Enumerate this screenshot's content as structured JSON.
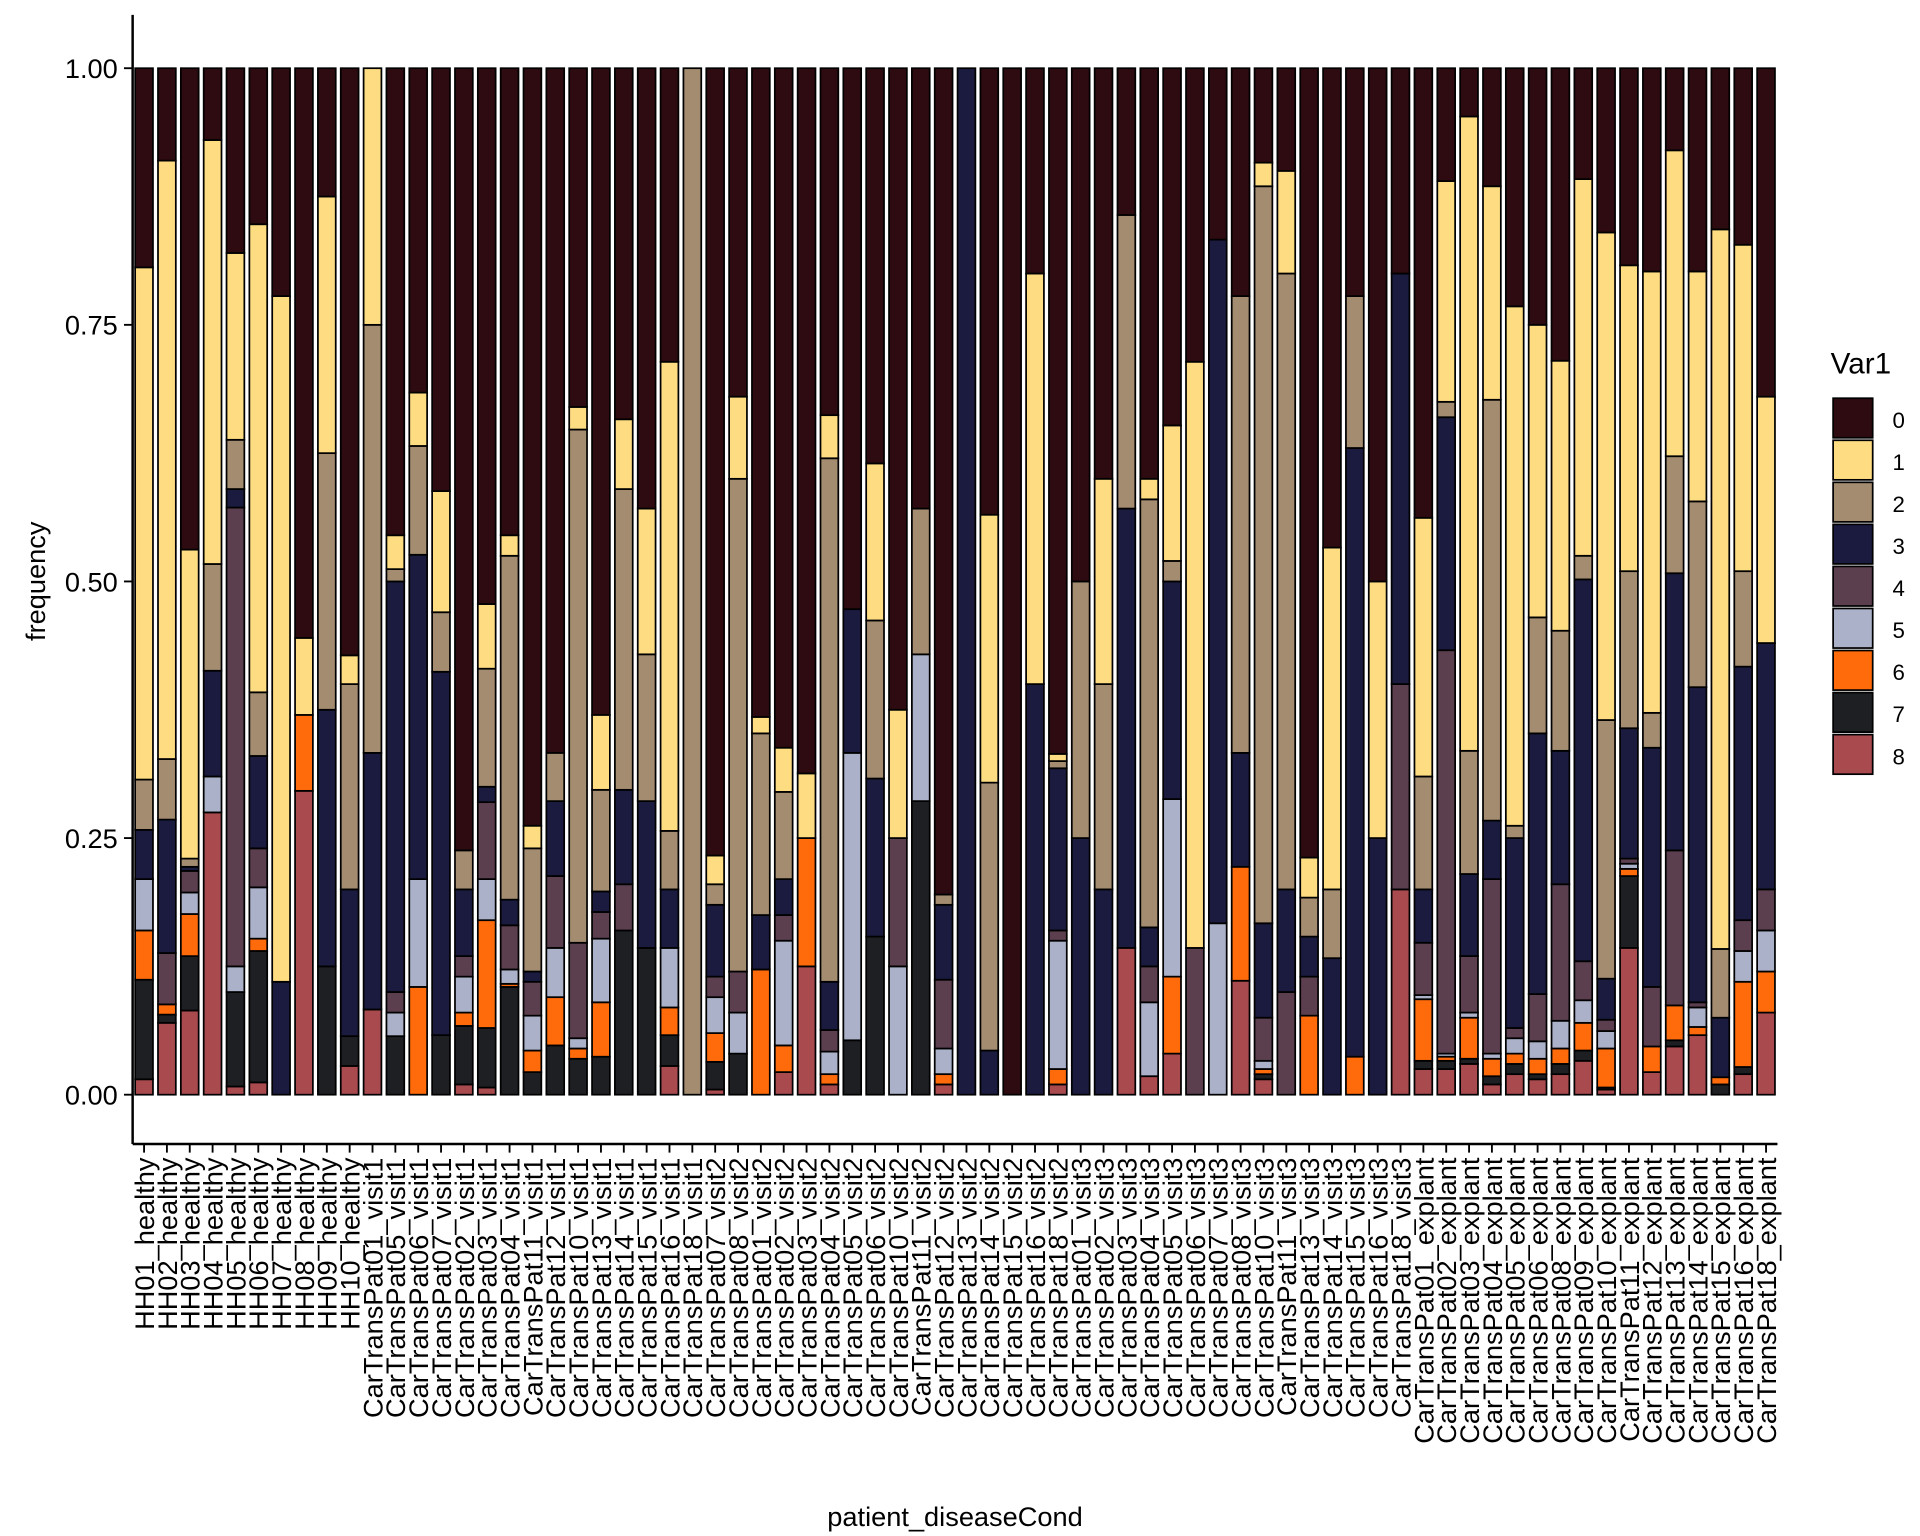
{
  "chart_data": {
    "type": "stacked_bar",
    "xlabel": "patient_diseaseCond",
    "ylabel": "frequency",
    "legend_title": "Var1",
    "legend_position": "right",
    "categories": [
      "HH01_healthy",
      "HH02_healthy",
      "HH03_healthy",
      "HH04_healthy",
      "HH05_healthy",
      "HH06_healthy",
      "HH07_healthy",
      "HH08_healthy",
      "HH09_healthy",
      "HH10_healthy",
      "CarTransPat01_visit1",
      "CarTransPat05_visit1",
      "CarTransPat06_visit1",
      "CarTransPat07_visit1",
      "CarTransPat02_visit1",
      "CarTransPat03_visit1",
      "CarTransPat04_visit1",
      "CarTransPat11_visit1",
      "CarTransPat12_visit1",
      "CarTransPat10_visit1",
      "CarTransPat13_visit1",
      "CarTransPat14_visit1",
      "CarTransPat15_visit1",
      "CarTransPat16_visit1",
      "CarTransPat18_visit1",
      "CarTransPat07_visit2",
      "CarTransPat08_visit2",
      "CarTransPat01_visit2",
      "CarTransPat02_visit2",
      "CarTransPat03_visit2",
      "CarTransPat04_visit2",
      "CarTransPat05_visit2",
      "CarTransPat06_visit2",
      "CarTransPat10_visit2",
      "CarTransPat11_visit2",
      "CarTransPat12_visit2",
      "CarTransPat13_visit2",
      "CarTransPat14_visit2",
      "CarTransPat15_visit2",
      "CarTransPat16_visit2",
      "CarTransPat18_visit2",
      "CarTransPat01_visit3",
      "CarTransPat02_visit3",
      "CarTransPat03_visit3",
      "CarTransPat04_visit3",
      "CarTransPat05_visit3",
      "CarTransPat06_visit3",
      "CarTransPat07_visit3",
      "CarTransPat08_visit3",
      "CarTransPat10_visit3",
      "CarTransPat11_visit3",
      "CarTransPat13_visit3",
      "CarTransPat14_visit3",
      "CarTransPat15_visit3",
      "CarTransPat16_visit3",
      "CarTransPat18_visit3",
      "CarTransPat01_explant",
      "CarTransPat02_explant",
      "CarTransPat03_explant",
      "CarTransPat04_explant",
      "CarTransPat05_explant",
      "CarTransPat06_explant",
      "CarTransPat08_explant",
      "CarTransPat09_explant",
      "CarTransPat10_explant",
      "CarTransPat11_explant",
      "CarTransPat12_explant",
      "CarTransPat13_explant",
      "CarTransPat14_explant",
      "CarTransPat15_explant",
      "CarTransPat16_explant",
      "CarTransPat18_explant"
    ],
    "series": [
      {
        "name": "0",
        "color": "#2e0b10",
        "values": [
          0.194,
          0.09,
          0.469,
          0.07,
          0.18,
          0.152,
          0.222,
          0.555,
          0.125,
          0.572,
          0,
          0.455,
          0.316,
          0.412,
          0.762,
          0.522,
          0.455,
          0.738,
          0.667,
          0.33,
          0.63,
          0.342,
          0.429,
          0.286,
          0,
          0.767,
          0.32,
          0.632,
          0.662,
          0.687,
          0.338,
          0.527,
          0.385,
          0.625,
          0.429,
          0.805,
          0,
          0.435,
          1,
          0.2,
          0.668,
          0.5,
          0.4,
          0.143,
          0.4,
          0.348,
          0.286,
          0.167,
          0.222,
          0.092,
          0.1,
          0.769,
          0.467,
          0.222,
          0.5,
          0.2,
          0.438,
          0.11,
          0.047,
          0.115,
          0.232,
          0.25,
          0.285,
          0.108,
          0.16,
          0.192,
          0.198,
          0.08,
          0.198,
          0.157,
          0.172,
          0.32
        ]
      },
      {
        "name": "1",
        "color": "#fddc82",
        "values": [
          0.499,
          0.583,
          0.301,
          0.413,
          0.182,
          0.456,
          0.668,
          0.075,
          0.25,
          0.028,
          0.25,
          0.033,
          0.052,
          0.118,
          0,
          0.063,
          0.02,
          0.022,
          0,
          0.022,
          0.073,
          0.068,
          0.142,
          0.457,
          0,
          0.028,
          0.08,
          0.016,
          0.043,
          0.063,
          0.042,
          0,
          0.153,
          0.125,
          0,
          0,
          0,
          0.261,
          0,
          0.4,
          0.007,
          0,
          0.2,
          0,
          0.02,
          0.132,
          0.571,
          0,
          0,
          0.023,
          0.1,
          0.039,
          0.333,
          0,
          0.25,
          0,
          0.252,
          0.215,
          0.618,
          0.208,
          0.506,
          0.285,
          0.263,
          0.367,
          0.475,
          0.298,
          0.43,
          0.298,
          0.224,
          0.701,
          0.318,
          0.24
        ]
      },
      {
        "name": "2",
        "color": "#a48c70",
        "values": [
          0.049,
          0.059,
          0.008,
          0.104,
          0.048,
          0.062,
          0,
          0,
          0.25,
          0.2,
          0.417,
          0.012,
          0.106,
          0.058,
          0.038,
          0.115,
          0.335,
          0.12,
          0.047,
          0.5,
          0.099,
          0.293,
          0.143,
          0.057,
          1,
          0.02,
          0.48,
          0.177,
          0.085,
          0,
          0.51,
          0,
          0.154,
          0,
          0.142,
          0.01,
          0,
          0.261,
          0,
          0,
          0.007,
          0.25,
          0.2,
          0.286,
          0.417,
          0.02,
          0,
          0,
          0.445,
          0.718,
          0.6,
          0.038,
          0.067,
          0.148,
          0,
          0,
          0.11,
          0.015,
          0.12,
          0.41,
          0.012,
          0.113,
          0.117,
          0.023,
          0.252,
          0.153,
          0.034,
          0.114,
          0.181,
          0.067,
          0.093,
          0
        ]
      },
      {
        "name": "3",
        "color": "#1a1b3f",
        "values": [
          0.048,
          0.13,
          0.004,
          0.103,
          0.018,
          0.09,
          0.11,
          0,
          0.25,
          0.143,
          0.25,
          0.4,
          0.316,
          0.354,
          0.065,
          0.015,
          0.025,
          0.01,
          0.073,
          0,
          0.02,
          0.092,
          0.143,
          0.057,
          0,
          0.07,
          0,
          0.053,
          0.035,
          0,
          0.047,
          0.14,
          0.154,
          0,
          0,
          0.073,
          1,
          0.043,
          0,
          0.4,
          0.158,
          0.25,
          0.2,
          0.428,
          0.038,
          0.212,
          0,
          0.666,
          0.111,
          0.092,
          0.1,
          0.039,
          0.133,
          0.593,
          0.25,
          0.4,
          0.052,
          0.227,
          0.08,
          0.057,
          0.185,
          0.254,
          0.13,
          0.372,
          0.04,
          0.127,
          0.233,
          0.27,
          0.307,
          0.058,
          0.247,
          0.24
        ]
      },
      {
        "name": "4",
        "color": "#5b3f4f",
        "values": [
          0,
          0.05,
          0.021,
          0,
          0.447,
          0.038,
          0,
          0,
          0,
          0,
          0,
          0.02,
          0,
          0,
          0.02,
          0.075,
          0.043,
          0.033,
          0.07,
          0.093,
          0.026,
          0.045,
          0,
          0,
          0,
          0.02,
          0.04,
          0,
          0.025,
          0,
          0.021,
          0,
          0,
          0.125,
          0,
          0.067,
          0,
          0,
          0,
          0,
          0.01,
          0,
          0,
          0,
          0.035,
          0,
          0.143,
          0,
          0,
          0.042,
          0.1,
          0.038,
          0,
          0,
          0,
          0.2,
          0.051,
          0.393,
          0.055,
          0.17,
          0.01,
          0.046,
          0.133,
          0.038,
          0.011,
          0.005,
          0.058,
          0.151,
          0.005,
          0,
          0.03,
          0.04
        ]
      },
      {
        "name": "5",
        "color": "#aab1c8",
        "values": [
          0.05,
          0,
          0.021,
          0.035,
          0.025,
          0.05,
          0,
          0,
          0,
          0,
          0,
          0.023,
          0.105,
          0,
          0.035,
          0.04,
          0.014,
          0.034,
          0.048,
          0.01,
          0.062,
          0,
          0,
          0.058,
          0,
          0.035,
          0.04,
          0,
          0.102,
          0,
          0.022,
          0.28,
          0,
          0.125,
          0.143,
          0.025,
          0,
          0,
          0,
          0,
          0.125,
          0,
          0,
          0,
          0.072,
          0.173,
          0,
          0.167,
          0,
          0.008,
          0,
          0,
          0,
          0,
          0,
          0,
          0.004,
          0.003,
          0.005,
          0.005,
          0.015,
          0.017,
          0.027,
          0.022,
          0.017,
          0.005,
          0,
          0,
          0.019,
          0,
          0.03,
          0.04
        ]
      },
      {
        "name": "6",
        "color": "#ff6a0a",
        "values": [
          0.048,
          0.01,
          0.041,
          0,
          0,
          0.012,
          0,
          0.074,
          0,
          0,
          0,
          0,
          0.105,
          0,
          0.013,
          0.105,
          0.003,
          0.021,
          0.047,
          0.01,
          0.053,
          0,
          0,
          0.027,
          0,
          0.028,
          0,
          0.122,
          0.026,
          0.125,
          0.01,
          0,
          0,
          0,
          0,
          0.01,
          0,
          0,
          0,
          0,
          0.015,
          0,
          0,
          0,
          0,
          0.075,
          0,
          0,
          0.111,
          0.005,
          0,
          0.077,
          0,
          0.037,
          0,
          0,
          0.06,
          0.004,
          0.04,
          0.017,
          0.01,
          0.015,
          0.015,
          0.027,
          0.038,
          0.007,
          0.025,
          0.034,
          0.008,
          0.007,
          0.083,
          0.04
        ]
      },
      {
        "name": "7",
        "color": "#1e1f23",
        "values": [
          0.097,
          0.008,
          0.053,
          0,
          0.092,
          0.128,
          0,
          0,
          0.125,
          0.029,
          0,
          0.057,
          0,
          0.058,
          0.057,
          0.058,
          0.105,
          0.022,
          0.048,
          0.035,
          0.037,
          0.16,
          0.143,
          0.03,
          0,
          0.027,
          0.04,
          0,
          0,
          0,
          0,
          0.053,
          0.154,
          0,
          0.286,
          0,
          0,
          0,
          0,
          0,
          0,
          0,
          0,
          0,
          0,
          0,
          0,
          0,
          0,
          0.005,
          0,
          0,
          0,
          0,
          0,
          0,
          0.008,
          0.008,
          0.005,
          0.008,
          0.01,
          0.005,
          0.01,
          0.01,
          0.002,
          0.07,
          0,
          0.006,
          0,
          0.01,
          0.007,
          0
        ]
      },
      {
        "name": "8",
        "color": "#a94a4f",
        "values": [
          0.015,
          0.07,
          0.082,
          0.275,
          0.008,
          0.012,
          0,
          0.296,
          0,
          0.028,
          0.083,
          0,
          0,
          0,
          0.01,
          0.007,
          0,
          0,
          0,
          0,
          0,
          0,
          0,
          0.028,
          0,
          0.005,
          0,
          0,
          0.022,
          0.125,
          0.01,
          0,
          0,
          0,
          0,
          0.01,
          0,
          0,
          0,
          0,
          0.01,
          0,
          0,
          0.143,
          0.018,
          0.04,
          0,
          0,
          0.111,
          0.015,
          0,
          0,
          0,
          0,
          0,
          0.2,
          0.025,
          0.025,
          0.03,
          0.01,
          0.02,
          0.015,
          0.02,
          0.033,
          0.005,
          0.143,
          0.022,
          0.047,
          0.058,
          0,
          0.02,
          0.08
        ]
      }
    ],
    "ylim": [
      -0.048,
      1.052
    ],
    "yticks": [
      {
        "value": 0,
        "label": "0.00"
      },
      {
        "value": 0.25,
        "label": "0.25"
      },
      {
        "value": 0.5,
        "label": "0.50"
      },
      {
        "value": 0.75,
        "label": "0.75"
      },
      {
        "value": 1,
        "label": "1.00"
      }
    ],
    "grid": false
  }
}
